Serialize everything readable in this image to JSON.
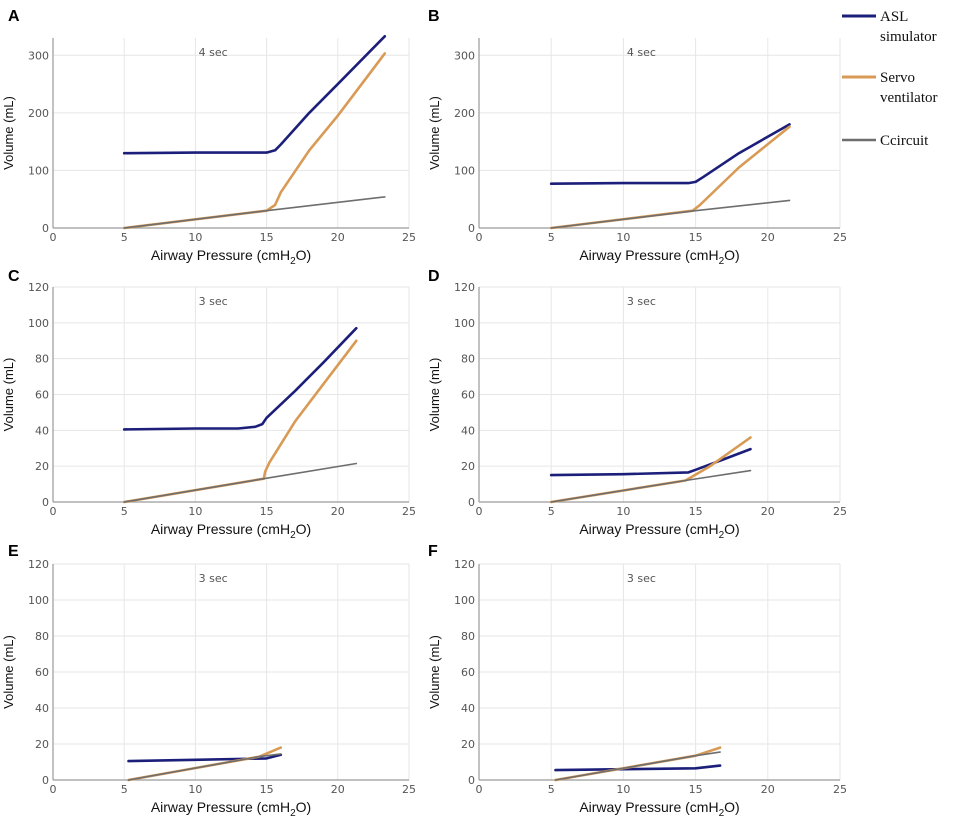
{
  "figure": {
    "x_unit_sub": "2",
    "legend": [
      {
        "name": "ASL",
        "name2": "simulator",
        "color": "#1c1f7a"
      },
      {
        "name": "Servo",
        "name2": "ventilator",
        "color": "#d89a55"
      },
      {
        "name": "Ccircuit",
        "name2": "",
        "color": "#6e6e6e"
      }
    ]
  },
  "chart_data": [
    {
      "id": "A",
      "type": "line",
      "annotation": "4 sec",
      "xlabel": "Airway Pressure (cmH2O)",
      "ylabel": "Volume (mL)",
      "xlim": [
        0,
        25
      ],
      "ylim": [
        0,
        330
      ],
      "xticks": [
        0,
        5,
        10,
        15,
        20,
        25
      ],
      "xtick_labels": [
        "0",
        "5",
        "10",
        "15",
        "20",
        "25"
      ],
      "yticks": [
        0,
        100,
        200,
        300
      ],
      "ytick_labels": [
        "0",
        "100",
        "200",
        "300"
      ],
      "series": [
        {
          "name": "ASL simulator",
          "color": "#1c1f7a",
          "x": [
            5,
            10,
            15,
            15.6,
            16,
            18,
            20,
            23.3
          ],
          "y": [
            130,
            131,
            131,
            135,
            145,
            200,
            250,
            333
          ]
        },
        {
          "name": "Servo ventilator",
          "color": "#d89a55",
          "x": [
            5,
            15,
            15.6,
            16,
            18,
            20,
            23.3
          ],
          "y": [
            0,
            30,
            40,
            62,
            135,
            195,
            303
          ]
        },
        {
          "name": "Ccircuit",
          "color": "#6e6e6e",
          "x": [
            5,
            15,
            23.3
          ],
          "y": [
            0,
            30,
            54
          ]
        }
      ]
    },
    {
      "id": "B",
      "type": "line",
      "annotation": "4 sec",
      "xlabel": "Airway Pressure (cmH2O)",
      "ylabel": "Volume (mL)",
      "xlim": [
        0,
        25
      ],
      "ylim": [
        0,
        330
      ],
      "xticks": [
        0,
        5,
        10,
        15,
        20,
        25
      ],
      "xtick_labels": [
        "0",
        "5",
        "10",
        "15",
        "20",
        "25"
      ],
      "yticks": [
        0,
        100,
        200,
        300
      ],
      "ytick_labels": [
        "0",
        "100",
        "200",
        "300"
      ],
      "series": [
        {
          "name": "ASL simulator",
          "color": "#1c1f7a",
          "x": [
            5,
            10,
            14.5,
            15,
            15.5,
            18,
            21.5
          ],
          "y": [
            77,
            78,
            78,
            80,
            88,
            130,
            180
          ]
        },
        {
          "name": "Servo ventilator",
          "color": "#d89a55",
          "x": [
            5,
            14.8,
            15.3,
            18,
            21.5
          ],
          "y": [
            0,
            30,
            40,
            105,
            176
          ]
        },
        {
          "name": "Ccircuit",
          "color": "#6e6e6e",
          "x": [
            5,
            15,
            21.5
          ],
          "y": [
            0,
            30,
            48
          ]
        }
      ]
    },
    {
      "id": "C",
      "type": "line",
      "annotation": "3 sec",
      "xlabel": "Airway Pressure (cmH2O)",
      "ylabel": "Volume (mL)",
      "xlim": [
        0,
        25
      ],
      "ylim": [
        0,
        120
      ],
      "xticks": [
        0,
        5,
        10,
        15,
        20,
        25
      ],
      "xtick_labels": [
        "0",
        "5",
        "10",
        "15",
        "20",
        "25"
      ],
      "yticks": [
        0,
        20,
        40,
        60,
        80,
        100,
        120
      ],
      "ytick_labels": [
        "0",
        "20",
        "40",
        "60",
        "80",
        "100",
        "120"
      ],
      "series": [
        {
          "name": "ASL simulator",
          "color": "#1c1f7a",
          "x": [
            5,
            10,
            13,
            14.2,
            14.7,
            15,
            17,
            19,
            21.3
          ],
          "y": [
            40.5,
            41,
            41,
            42,
            43.5,
            47,
            62,
            78,
            97
          ]
        },
        {
          "name": "Servo ventilator",
          "color": "#d89a55",
          "x": [
            5,
            14.8,
            14.9,
            15.2,
            17,
            19,
            21.3
          ],
          "y": [
            0,
            13,
            17,
            22,
            45,
            66,
            90
          ]
        },
        {
          "name": "Ccircuit",
          "color": "#6e6e6e",
          "x": [
            5,
            14.8,
            21.3
          ],
          "y": [
            0,
            13,
            21.5
          ]
        }
      ]
    },
    {
      "id": "D",
      "type": "line",
      "annotation": "3 sec",
      "xlabel": "Airway Pressure (cmH2O)",
      "ylabel": "Volume (mL)",
      "xlim": [
        0,
        25
      ],
      "ylim": [
        0,
        120
      ],
      "xticks": [
        0,
        5,
        10,
        15,
        20,
        25
      ],
      "xtick_labels": [
        "0",
        "5",
        "10",
        "15",
        "20",
        "25"
      ],
      "yticks": [
        0,
        20,
        40,
        60,
        80,
        100,
        120
      ],
      "ytick_labels": [
        "0",
        "20",
        "40",
        "60",
        "80",
        "100",
        "120"
      ],
      "series": [
        {
          "name": "ASL simulator",
          "color": "#1c1f7a",
          "x": [
            5,
            10,
            14.5,
            15,
            17,
            18.8
          ],
          "y": [
            15,
            15.5,
            16.5,
            18,
            24,
            29.5
          ]
        },
        {
          "name": "Servo ventilator",
          "color": "#d89a55",
          "x": [
            5,
            14.3,
            16,
            18.8
          ],
          "y": [
            0,
            12,
            20,
            36
          ]
        },
        {
          "name": "Ccircuit",
          "color": "#6e6e6e",
          "x": [
            5,
            14.3,
            18.8
          ],
          "y": [
            0,
            12,
            17.5
          ]
        }
      ]
    },
    {
      "id": "E",
      "type": "line",
      "annotation": "3 sec",
      "xlabel": "Airway Pressure (cmH2O)",
      "ylabel": "Volume (mL)",
      "xlim": [
        0,
        25
      ],
      "ylim": [
        0,
        120
      ],
      "xticks": [
        0,
        5,
        10,
        15,
        20,
        25
      ],
      "xtick_labels": [
        "0",
        "5",
        "10",
        "15",
        "20",
        "25"
      ],
      "yticks": [
        0,
        20,
        40,
        60,
        80,
        100,
        120
      ],
      "ytick_labels": [
        "0",
        "20",
        "40",
        "60",
        "80",
        "100",
        "120"
      ],
      "series": [
        {
          "name": "ASL simulator",
          "color": "#1c1f7a",
          "x": [
            5.3,
            10,
            15,
            16
          ],
          "y": [
            10.5,
            11.2,
            12,
            14
          ]
        },
        {
          "name": "Servo ventilator",
          "color": "#d89a55",
          "x": [
            5.3,
            14.5,
            16
          ],
          "y": [
            0,
            13,
            18
          ]
        },
        {
          "name": "Ccircuit",
          "color": "#6e6e6e",
          "x": [
            5.3,
            14.5,
            16
          ],
          "y": [
            0,
            13,
            14.5
          ]
        }
      ]
    },
    {
      "id": "F",
      "type": "line",
      "annotation": "3 sec",
      "xlabel": "Airway Pressure (cmH2O)",
      "ylabel": "Volume (mL)",
      "xlim": [
        0,
        25
      ],
      "ylim": [
        0,
        120
      ],
      "xticks": [
        0,
        5,
        10,
        15,
        20,
        25
      ],
      "xtick_labels": [
        "0",
        "5",
        "10",
        "15",
        "20",
        "25"
      ],
      "yticks": [
        0,
        20,
        40,
        60,
        80,
        100,
        120
      ],
      "ytick_labels": [
        "0",
        "20",
        "40",
        "60",
        "80",
        "100",
        "120"
      ],
      "series": [
        {
          "name": "ASL simulator",
          "color": "#1c1f7a",
          "x": [
            5.3,
            10,
            15,
            16.7
          ],
          "y": [
            5.5,
            6,
            6.5,
            8
          ]
        },
        {
          "name": "Servo ventilator",
          "color": "#d89a55",
          "x": [
            5.3,
            15,
            16.7
          ],
          "y": [
            0,
            13.5,
            18
          ]
        },
        {
          "name": "Ccircuit",
          "color": "#6e6e6e",
          "x": [
            5.3,
            15,
            16.7
          ],
          "y": [
            0,
            13.5,
            15.5
          ]
        }
      ]
    }
  ]
}
